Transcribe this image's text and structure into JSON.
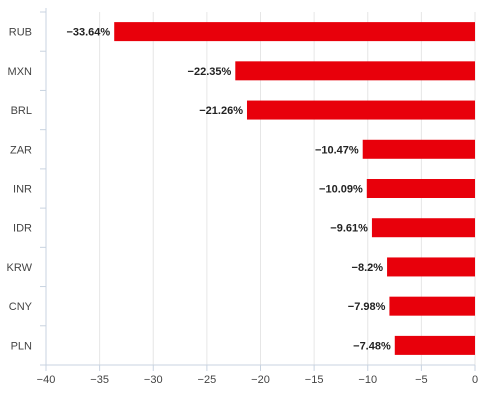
{
  "chart_data": {
    "type": "bar",
    "orientation": "horizontal",
    "categories": [
      "RUB",
      "MXN",
      "BRL",
      "ZAR",
      "INR",
      "IDR",
      "KRW",
      "CNY",
      "PLN"
    ],
    "values": [
      -33.64,
      -22.35,
      -21.26,
      -10.47,
      -10.09,
      -9.61,
      -8.2,
      -7.98,
      -7.48
    ],
    "value_labels": [
      "−33.64%",
      "−22.35%",
      "−21.26%",
      "−10.47%",
      "−10.09%",
      "−9.61%",
      "−8.2%",
      "−7.98%",
      "−7.48%"
    ],
    "xlim": [
      -40,
      0
    ],
    "x_ticks": [
      -40,
      -35,
      -30,
      -25,
      -20,
      -15,
      -10,
      -5,
      0
    ],
    "x_tick_labels": [
      "−40",
      "−35",
      "−30",
      "−25",
      "−20",
      "−15",
      "−10",
      "−5",
      "0"
    ],
    "bar_color": "#e8000b",
    "grid": true,
    "legend": false,
    "title": "",
    "xlabel": "",
    "ylabel": ""
  }
}
